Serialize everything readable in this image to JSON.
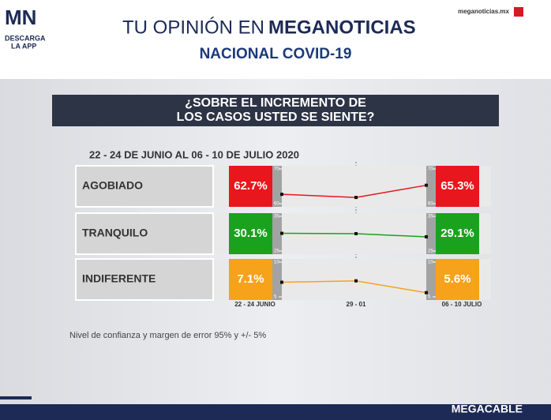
{
  "header": {
    "logo": "MN",
    "logo_caption": [
      "DESCARGA",
      "LA APP"
    ],
    "title_light": "TU OPINIÓN EN",
    "title_bold": "MEGANOTICIAS",
    "site": "meganoticias.mx",
    "subtitle": "NACIONAL COVID-19"
  },
  "question": [
    "¿SOBRE EL INCREMENTO DE",
    "LOS CASOS USTED SE SIENTE?"
  ],
  "period": "22 - 24 DE JUNIO AL 06 - 10 DE JULIO 2020",
  "footnote": "Nivel de confianza y margen de error 95% y +/- 5%",
  "footer_brand": "MEGACABLE",
  "chart_data": {
    "type": "line",
    "categories": [
      "22 - 24 JUNIO",
      "29 - 01",
      "06 - 10 JULIO"
    ],
    "series": [
      {
        "name": "AGOBIADO",
        "color": "#e8161d",
        "values": [
          62.7,
          61.8,
          65.3
        ],
        "value_labels": [
          "62.7%",
          null,
          "65.3%"
        ],
        "ylim": [
          60,
          70
        ],
        "yticks": [
          60,
          70
        ]
      },
      {
        "name": "TRANQUILO",
        "color": "#1aa21f",
        "values": [
          30.1,
          30.0,
          29.1
        ],
        "value_labels": [
          "30.1%",
          null,
          "29.1%"
        ],
        "ylim": [
          25,
          35
        ],
        "yticks": [
          25,
          35
        ]
      },
      {
        "name": "INDIFERENTE",
        "color": "#f7a21b",
        "values": [
          7.1,
          7.3,
          5.6
        ],
        "value_labels": [
          "7.1%",
          null,
          "5.6%"
        ],
        "ylim": [
          5,
          10
        ],
        "yticks": [
          5,
          10
        ]
      }
    ]
  }
}
